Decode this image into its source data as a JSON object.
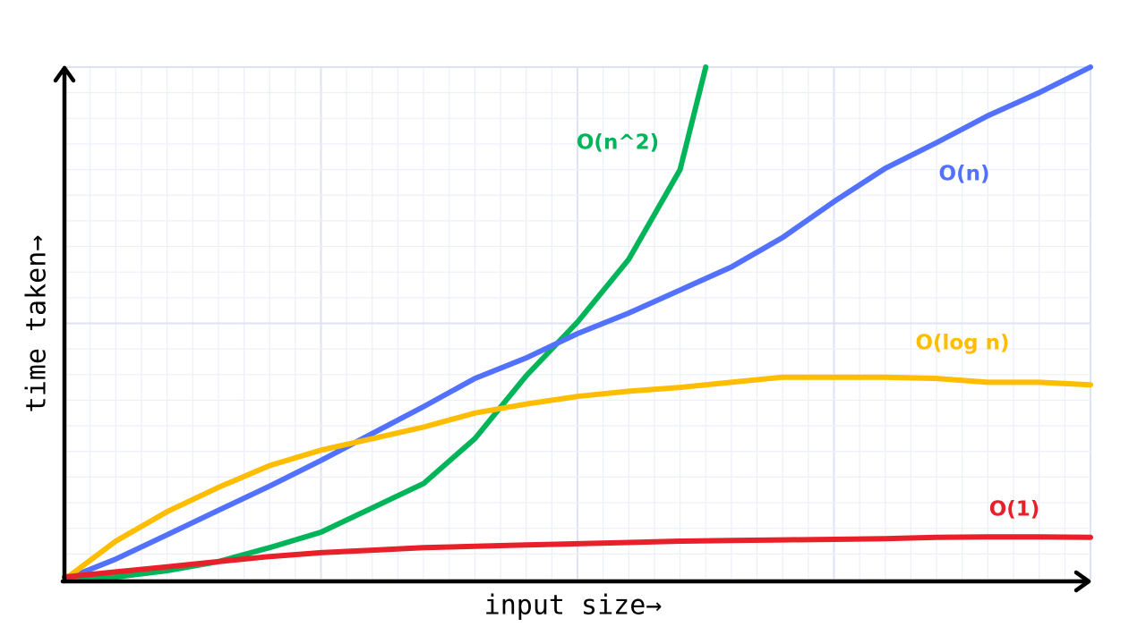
{
  "chart_data": {
    "type": "line",
    "x_label": "input size→",
    "y_label": "time taken→",
    "x": [
      0,
      2,
      4,
      6,
      8,
      10,
      12,
      14,
      16,
      18,
      20,
      22,
      24,
      26,
      28,
      30,
      32,
      34,
      36,
      38,
      40
    ],
    "xlim": [
      0,
      40
    ],
    "ylim": [
      0,
      20
    ],
    "grid": true,
    "series": [
      {
        "name": "O(n^2)",
        "color": "#00b559",
        "x": [
          0,
          2,
          4,
          6,
          8,
          10,
          12,
          14,
          16,
          18,
          20,
          22,
          24,
          25
        ],
        "values": [
          0,
          0.1,
          0.35,
          0.7,
          1.25,
          1.85,
          2.8,
          3.75,
          5.5,
          7.95,
          10.05,
          12.5,
          16,
          20
        ]
      },
      {
        "name": "O(n)",
        "color": "#5271ff",
        "values": [
          0,
          0.8,
          1.75,
          2.7,
          3.65,
          4.65,
          5.7,
          6.75,
          7.85,
          8.65,
          9.6,
          10.4,
          11.3,
          12.2,
          13.35,
          14.75,
          16.05,
          17.05,
          18.1,
          19,
          20
        ]
      },
      {
        "name": "O(log n)",
        "color": "#ffbd00",
        "values": [
          0,
          1.5,
          2.65,
          3.6,
          4.45,
          5.05,
          5.5,
          5.95,
          6.5,
          6.85,
          7.15,
          7.35,
          7.5,
          7.7,
          7.9,
          7.9,
          7.9,
          7.85,
          7.7,
          7.7,
          7.6
        ]
      },
      {
        "name": "O(1)",
        "color": "#e8202a",
        "values": [
          0.1,
          0.3,
          0.5,
          0.7,
          0.9,
          1.05,
          1.15,
          1.25,
          1.3,
          1.35,
          1.4,
          1.45,
          1.5,
          1.53,
          1.55,
          1.57,
          1.6,
          1.65,
          1.67,
          1.67,
          1.65
        ]
      }
    ]
  }
}
